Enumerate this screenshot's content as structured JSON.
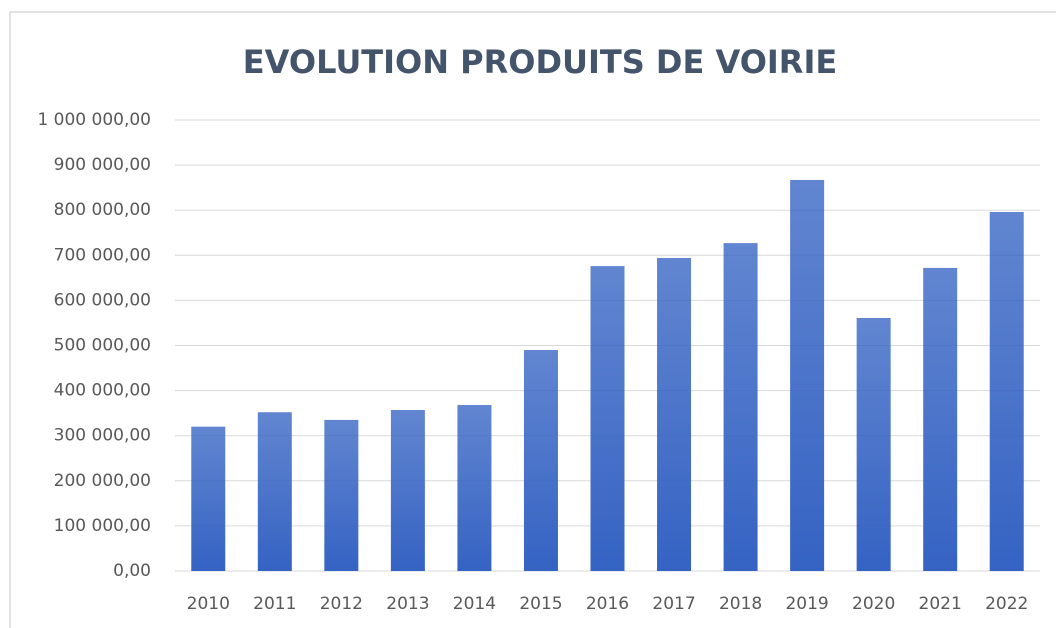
{
  "chart_data": {
    "type": "bar",
    "title": "EVOLUTION PRODUITS DE VOIRIE",
    "categories": [
      "2010",
      "2011",
      "2012",
      "2013",
      "2014",
      "2015",
      "2016",
      "2017",
      "2018",
      "2019",
      "2020",
      "2021",
      "2022"
    ],
    "values": [
      320000,
      352000,
      335000,
      357000,
      368000,
      490000,
      676000,
      694000,
      727000,
      867000,
      561000,
      672000,
      796000
    ],
    "color": "#3563c3",
    "ylim": [
      0,
      1000000
    ],
    "yticks": [
      {
        "value": 0,
        "label": "0,00"
      },
      {
        "value": 100000,
        "label": "100 000,00"
      },
      {
        "value": 200000,
        "label": "200 000,00"
      },
      {
        "value": 300000,
        "label": "300 000,00"
      },
      {
        "value": 400000,
        "label": "400 000,00"
      },
      {
        "value": 500000,
        "label": "500 000,00"
      },
      {
        "value": 600000,
        "label": "600 000,00"
      },
      {
        "value": 700000,
        "label": "700 000,00"
      },
      {
        "value": 800000,
        "label": "800 000,00"
      },
      {
        "value": 900000,
        "label": "900 000,00"
      },
      {
        "value": 1000000,
        "label": "1 000 000,00"
      }
    ],
    "grid": true
  }
}
